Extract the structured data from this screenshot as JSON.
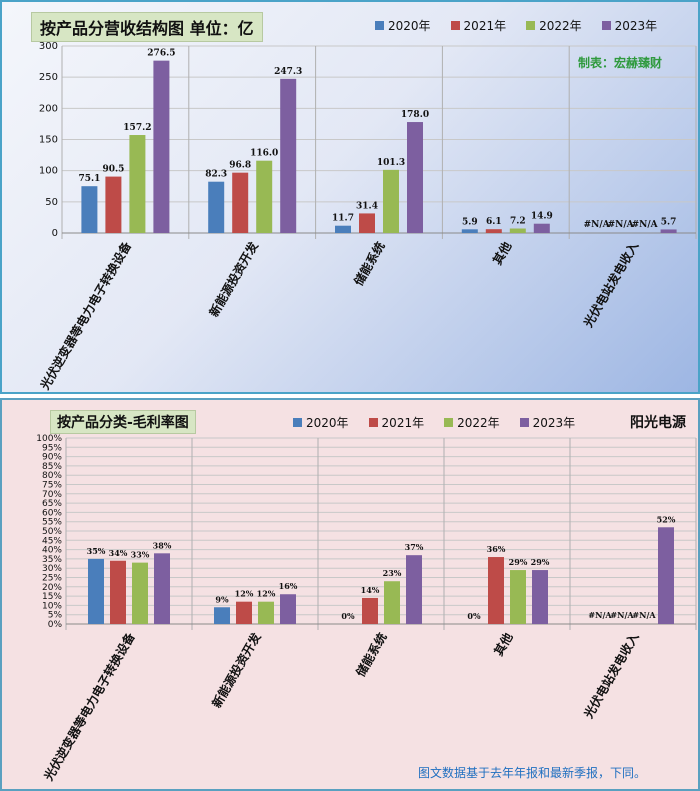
{
  "colors": {
    "s2020": "#4a7ebb",
    "s2021": "#be4b48",
    "s2022": "#98b954",
    "s2023": "#7d5fa0"
  },
  "chart_data": [
    {
      "type": "bar",
      "title": "按产品分营收结构图 单位：亿",
      "annotation": "制表：宏赫臻财",
      "categories": [
        "光伏逆变器等电力电子转换设备",
        "新能源投资开发",
        "储能系统",
        "其他",
        "光伏电站发电收入"
      ],
      "series": [
        {
          "name": "2020年",
          "values": [
            75.1,
            82.3,
            11.7,
            5.9,
            null
          ],
          "labels": [
            "75.1",
            "82.3",
            "11.7",
            "5.9",
            "#N/A"
          ]
        },
        {
          "name": "2021年",
          "values": [
            90.5,
            96.8,
            31.4,
            6.1,
            null
          ],
          "labels": [
            "90.5",
            "96.8",
            "31.4",
            "6.1",
            "#N/A"
          ]
        },
        {
          "name": "2022年",
          "values": [
            157.2,
            116.0,
            101.3,
            7.2,
            null
          ],
          "labels": [
            "157.2",
            "116.0",
            "101.3",
            "7.2",
            "#N/A"
          ]
        },
        {
          "name": "2023年",
          "values": [
            276.5,
            247.3,
            178.0,
            14.9,
            5.7
          ],
          "labels": [
            "276.5",
            "247.3",
            "178.0",
            "14.9",
            "5.7"
          ]
        }
      ],
      "ylim": [
        0,
        300
      ],
      "yticks": [
        0,
        50,
        100,
        150,
        200,
        250,
        300
      ],
      "yticklabels": [
        "0",
        "50",
        "100",
        "150",
        "200",
        "250",
        "300"
      ],
      "grid": true,
      "legend": "top"
    },
    {
      "type": "bar",
      "title": "按产品分类-毛利率图",
      "annotation": "阳光电源",
      "footnote": "图文数据基于去年年报和最新季报，下同。",
      "categories": [
        "光伏逆变器等电力电子转换设备",
        "新能源投资开发",
        "储能系统",
        "其他",
        "光伏电站发电收入"
      ],
      "series": [
        {
          "name": "2020年",
          "values": [
            35,
            9,
            0,
            0,
            null
          ],
          "labels": [
            "35%",
            "9%",
            "0%",
            "0%",
            "#N/A"
          ]
        },
        {
          "name": "2021年",
          "values": [
            34,
            12,
            14,
            36,
            null
          ],
          "labels": [
            "34%",
            "12%",
            "14%",
            "36%",
            "#N/A"
          ]
        },
        {
          "name": "2022年",
          "values": [
            33,
            12,
            23,
            29,
            null
          ],
          "labels": [
            "33%",
            "12%",
            "23%",
            "29%",
            "#N/A"
          ]
        },
        {
          "name": "2023年",
          "values": [
            38,
            16,
            37,
            29,
            52
          ],
          "labels": [
            "38%",
            "16%",
            "37%",
            "29%",
            "52%"
          ]
        }
      ],
      "ylim": [
        0,
        100
      ],
      "yticks": [
        0,
        5,
        10,
        15,
        20,
        25,
        30,
        35,
        40,
        45,
        50,
        55,
        60,
        65,
        70,
        75,
        80,
        85,
        90,
        95,
        100
      ],
      "yticklabels": [
        "0%",
        "5%",
        "10%",
        "15%",
        "20%",
        "25%",
        "30%",
        "35%",
        "40%",
        "45%",
        "50%",
        "55%",
        "60%",
        "65%",
        "70%",
        "75%",
        "80%",
        "85%",
        "90%",
        "95%",
        "100%"
      ],
      "grid": true,
      "legend": "top"
    }
  ]
}
